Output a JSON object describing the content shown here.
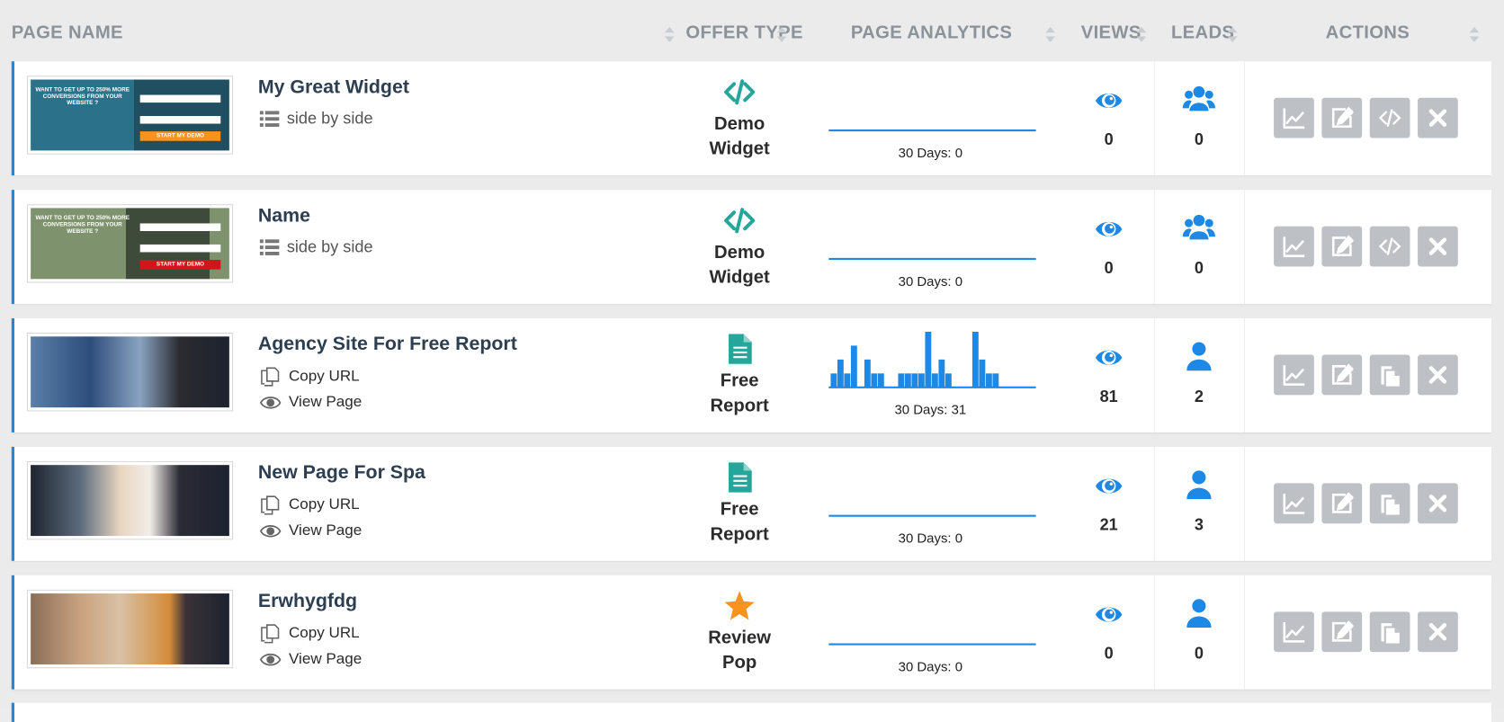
{
  "header": {
    "columns": [
      "PAGE NAME",
      "OFFER TYPE",
      "PAGE ANALYTICS",
      "VIEWS",
      "LEADS",
      "ACTIONS"
    ]
  },
  "rows": [
    {
      "name": "My Great Widget",
      "layout": "side by side",
      "offer_type": "Demo Widget",
      "thumbnail": {
        "headline": "WANT TO GET UP TO 250% MORE CONVERSIONS FROM YOUR WEBSITE ?",
        "button": "START MY DEMO"
      },
      "analytics": {
        "values": [
          0,
          0,
          0,
          0,
          0,
          0,
          0,
          0,
          0,
          0,
          0,
          0,
          0,
          0,
          0,
          0,
          0,
          0,
          0,
          0,
          0,
          0,
          0,
          0,
          0,
          0,
          0,
          0,
          0,
          0
        ],
        "label": "30 Days: 0"
      },
      "views": 0,
      "leads": 0
    },
    {
      "name": "Name",
      "layout": "side by side",
      "offer_type": "Demo Widget",
      "thumbnail": {
        "headline": "WANT TO GET UP TO 250% MORE CONVERSIONS FROM YOUR WEBSITE ?",
        "button": "START MY DEMO"
      },
      "analytics": {
        "values": [
          0,
          0,
          0,
          0,
          0,
          0,
          0,
          0,
          0,
          0,
          0,
          0,
          0,
          0,
          0,
          0,
          0,
          0,
          0,
          0,
          0,
          0,
          0,
          0,
          0,
          0,
          0,
          0,
          0,
          0
        ],
        "label": "30 Days: 0"
      },
      "views": 0,
      "leads": 0
    },
    {
      "name": "Agency Site For Free Report",
      "links": [
        "Copy URL",
        "View Page"
      ],
      "offer_type": "Free Report",
      "analytics": {
        "values": [
          1,
          2,
          1,
          3,
          0,
          2,
          1,
          1,
          0,
          0,
          1,
          1,
          1,
          1,
          4,
          1,
          2,
          1,
          0,
          0,
          0,
          4,
          2,
          1,
          1,
          0,
          0,
          0,
          0,
          0
        ],
        "label": "30 Days: 31"
      },
      "views": 81,
      "leads": 2
    },
    {
      "name": "New Page For Spa",
      "links": [
        "Copy URL",
        "View Page"
      ],
      "offer_type": "Free Report",
      "analytics": {
        "values": [
          0,
          0,
          0,
          0,
          0,
          0,
          0,
          0,
          0,
          0,
          0,
          0,
          0,
          0,
          0,
          0,
          0,
          0,
          0,
          0,
          0,
          0,
          0,
          0,
          0,
          0,
          0,
          0,
          0,
          0
        ],
        "label": "30 Days: 0"
      },
      "views": 21,
      "leads": 3
    },
    {
      "name": "Erwhygfdg",
      "links": [
        "Copy URL",
        "View Page"
      ],
      "offer_type": "Review Pop",
      "analytics": {
        "values": [
          0,
          0,
          0,
          0,
          0,
          0,
          0,
          0,
          0,
          0,
          0,
          0,
          0,
          0,
          0,
          0,
          0,
          0,
          0,
          0,
          0,
          0,
          0,
          0,
          0,
          0,
          0,
          0,
          0,
          0
        ],
        "label": "30 Days: 0"
      },
      "views": 0,
      "leads": 0
    }
  ]
}
